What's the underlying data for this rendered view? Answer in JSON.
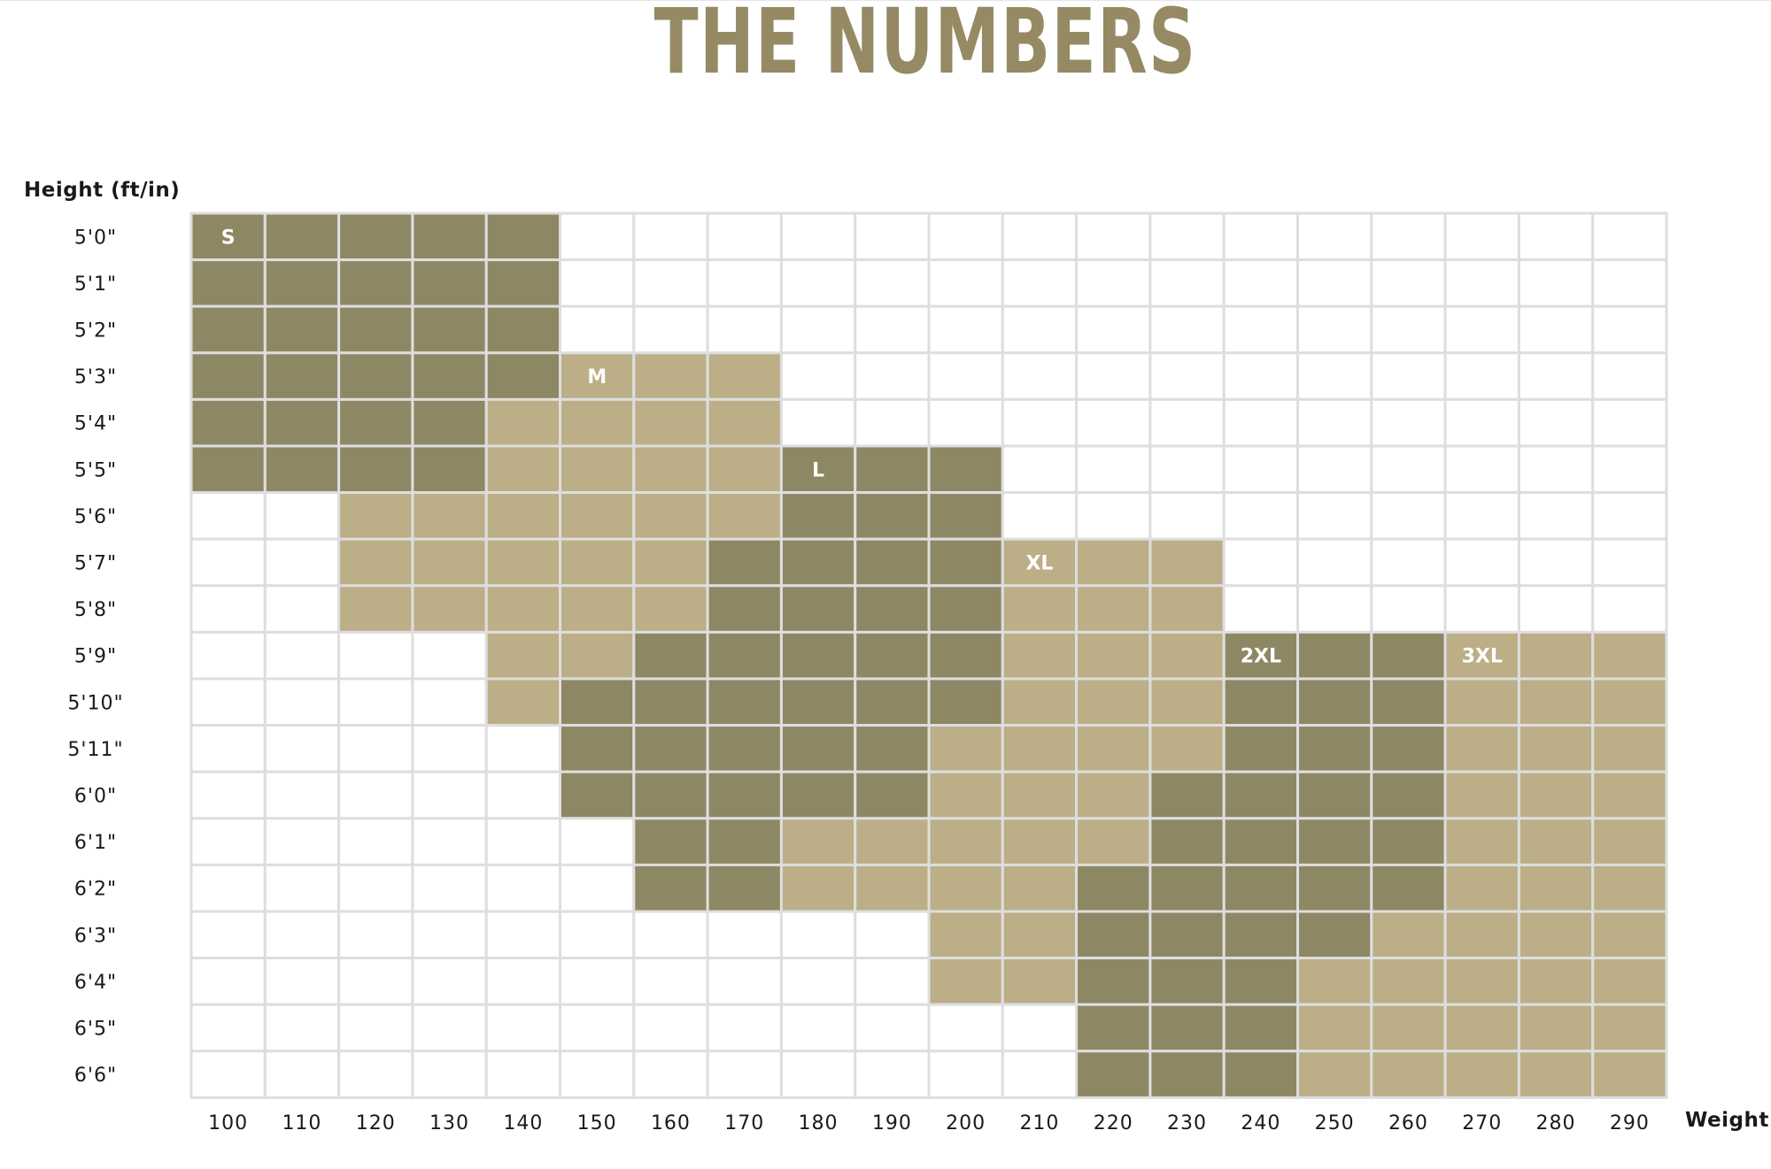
{
  "title": "THE NUMBERS",
  "colors": {
    "dark": "#8e8764",
    "light": "#bcae87",
    "grid": "#dedede",
    "title": "#958a64"
  },
  "chart_data": {
    "type": "heatmap",
    "title": "THE NUMBERS",
    "ylabel": "Height (ft/in)",
    "xlabel": "Weight",
    "x_ticks": [
      "100",
      "110",
      "120",
      "130",
      "140",
      "150",
      "160",
      "170",
      "180",
      "190",
      "200",
      "210",
      "220",
      "230",
      "240",
      "250",
      "260",
      "270",
      "280",
      "290"
    ],
    "y_ticks": [
      "5'0\"",
      "5'1\"",
      "5'2\"",
      "5'3\"",
      "5'4\"",
      "5'5\"",
      "5'6\"",
      "5'7\"",
      "5'8\"",
      "5'9\"",
      "5'10\"",
      "5'11\"",
      "6'0\"",
      "6'1\"",
      "6'2\"",
      "6'3\"",
      "6'4\"",
      "6'5\"",
      "6'6\""
    ],
    "grid": true,
    "legend": "none",
    "size_labels": [
      "S",
      "M",
      "L",
      "XL",
      "2XL",
      "3XL"
    ],
    "regions": [
      {
        "name": "S",
        "shade": "dark",
        "label_at": [
          "5'0\"",
          "100"
        ],
        "rows": [
          {
            "height": "5'0\"",
            "weight_from": 100,
            "weight_to": 140
          },
          {
            "height": "5'1\"",
            "weight_from": 100,
            "weight_to": 140
          },
          {
            "height": "5'2\"",
            "weight_from": 100,
            "weight_to": 140
          },
          {
            "height": "5'3\"",
            "weight_from": 100,
            "weight_to": 140
          },
          {
            "height": "5'4\"",
            "weight_from": 100,
            "weight_to": 130
          },
          {
            "height": "5'5\"",
            "weight_from": 100,
            "weight_to": 130
          }
        ]
      },
      {
        "name": "M",
        "shade": "light",
        "label_at": [
          "5'3\"",
          "150"
        ],
        "rows": [
          {
            "height": "5'3\"",
            "weight_from": 150,
            "weight_to": 170
          },
          {
            "height": "5'4\"",
            "weight_from": 140,
            "weight_to": 170
          },
          {
            "height": "5'5\"",
            "weight_from": 140,
            "weight_to": 170
          },
          {
            "height": "5'6\"",
            "weight_from": 120,
            "weight_to": 170
          },
          {
            "height": "5'7\"",
            "weight_from": 120,
            "weight_to": 160
          },
          {
            "height": "5'8\"",
            "weight_from": 120,
            "weight_to": 160
          },
          {
            "height": "5'9\"",
            "weight_from": 140,
            "weight_to": 150
          },
          {
            "height": "5'10\"",
            "weight_from": 140,
            "weight_to": 140
          }
        ]
      },
      {
        "name": "L",
        "shade": "dark",
        "label_at": [
          "5'5\"",
          "180"
        ],
        "rows": [
          {
            "height": "5'5\"",
            "weight_from": 180,
            "weight_to": 200
          },
          {
            "height": "5'6\"",
            "weight_from": 180,
            "weight_to": 200
          },
          {
            "height": "5'7\"",
            "weight_from": 170,
            "weight_to": 200
          },
          {
            "height": "5'8\"",
            "weight_from": 170,
            "weight_to": 200
          },
          {
            "height": "5'9\"",
            "weight_from": 160,
            "weight_to": 200
          },
          {
            "height": "5'10\"",
            "weight_from": 150,
            "weight_to": 200
          },
          {
            "height": "5'11\"",
            "weight_from": 150,
            "weight_to": 190
          },
          {
            "height": "6'0\"",
            "weight_from": 150,
            "weight_to": 190
          },
          {
            "height": "6'1\"",
            "weight_from": 160,
            "weight_to": 170
          },
          {
            "height": "6'2\"",
            "weight_from": 160,
            "weight_to": 170
          }
        ]
      },
      {
        "name": "XL",
        "shade": "light",
        "label_at": [
          "5'7\"",
          "210"
        ],
        "rows": [
          {
            "height": "5'7\"",
            "weight_from": 210,
            "weight_to": 230
          },
          {
            "height": "5'8\"",
            "weight_from": 210,
            "weight_to": 230
          },
          {
            "height": "5'9\"",
            "weight_from": 210,
            "weight_to": 230
          },
          {
            "height": "5'10\"",
            "weight_from": 210,
            "weight_to": 230
          },
          {
            "height": "5'11\"",
            "weight_from": 200,
            "weight_to": 230
          },
          {
            "height": "6'0\"",
            "weight_from": 200,
            "weight_to": 220
          },
          {
            "height": "6'1\"",
            "weight_from": 180,
            "weight_to": 220
          },
          {
            "height": "6'2\"",
            "weight_from": 180,
            "weight_to": 210
          },
          {
            "height": "6'3\"",
            "weight_from": 200,
            "weight_to": 210
          },
          {
            "height": "6'4\"",
            "weight_from": 200,
            "weight_to": 210
          }
        ]
      },
      {
        "name": "2XL",
        "shade": "dark",
        "label_at": [
          "5'9\"",
          "240"
        ],
        "rows": [
          {
            "height": "5'9\"",
            "weight_from": 240,
            "weight_to": 260
          },
          {
            "height": "5'10\"",
            "weight_from": 240,
            "weight_to": 260
          },
          {
            "height": "5'11\"",
            "weight_from": 240,
            "weight_to": 260
          },
          {
            "height": "6'0\"",
            "weight_from": 230,
            "weight_to": 260
          },
          {
            "height": "6'1\"",
            "weight_from": 230,
            "weight_to": 260
          },
          {
            "height": "6'2\"",
            "weight_from": 220,
            "weight_to": 260
          },
          {
            "height": "6'3\"",
            "weight_from": 220,
            "weight_to": 250
          },
          {
            "height": "6'4\"",
            "weight_from": 220,
            "weight_to": 240
          },
          {
            "height": "6'5\"",
            "weight_from": 220,
            "weight_to": 240
          },
          {
            "height": "6'6\"",
            "weight_from": 220,
            "weight_to": 240
          }
        ]
      },
      {
        "name": "3XL",
        "shade": "light",
        "label_at": [
          "5'9\"",
          "270"
        ],
        "rows": [
          {
            "height": "5'9\"",
            "weight_from": 270,
            "weight_to": 290
          },
          {
            "height": "5'10\"",
            "weight_from": 270,
            "weight_to": 290
          },
          {
            "height": "5'11\"",
            "weight_from": 270,
            "weight_to": 290
          },
          {
            "height": "6'0\"",
            "weight_from": 270,
            "weight_to": 290
          },
          {
            "height": "6'1\"",
            "weight_from": 270,
            "weight_to": 290
          },
          {
            "height": "6'2\"",
            "weight_from": 270,
            "weight_to": 290
          },
          {
            "height": "6'3\"",
            "weight_from": 260,
            "weight_to": 290
          },
          {
            "height": "6'4\"",
            "weight_from": 250,
            "weight_to": 290
          },
          {
            "height": "6'5\"",
            "weight_from": 250,
            "weight_to": 290
          },
          {
            "height": "6'6\"",
            "weight_from": 250,
            "weight_to": 290
          }
        ]
      }
    ]
  }
}
